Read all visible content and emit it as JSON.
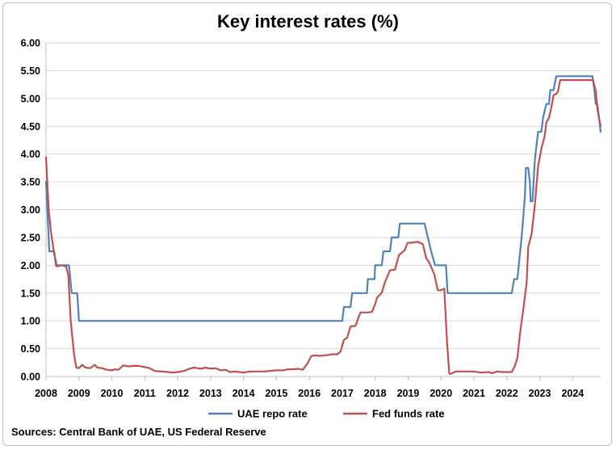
{
  "chart_data": {
    "type": "line",
    "title": "Key interest rates (%)",
    "source": "Sources: Central Bank of UAE, US Federal Reserve",
    "xlim": [
      2008,
      2024.85
    ],
    "ylim": [
      0,
      6
    ],
    "y_ticks": [
      0,
      0.5,
      1,
      1.5,
      2,
      2.5,
      3,
      3.5,
      4,
      4.5,
      5,
      5.5,
      6
    ],
    "y_tick_labels": [
      "0.00",
      "0.50",
      "1.00",
      "1.50",
      "2.00",
      "2.50",
      "3.00",
      "3.50",
      "4.00",
      "4.50",
      "5.00",
      "5.50",
      "6.00"
    ],
    "x_tick_labels": [
      "2008",
      "2009",
      "2010",
      "2011",
      "2012",
      "2013",
      "2014",
      "2015",
      "2016",
      "2017",
      "2018",
      "2019",
      "2020",
      "2021",
      "2022",
      "2023",
      "2024"
    ],
    "grid": "horizontal",
    "legend": "bottom",
    "series": [
      {
        "name": "UAE repo rate",
        "color": "#4f81bd",
        "points": [
          [
            2008.0,
            3.5
          ],
          [
            2008.1,
            2.25
          ],
          [
            2008.25,
            2.25
          ],
          [
            2008.3,
            2.0
          ],
          [
            2008.7,
            2.0
          ],
          [
            2008.78,
            1.5
          ],
          [
            2008.95,
            1.5
          ],
          [
            2009.0,
            1.0
          ],
          [
            2017.0,
            1.0
          ],
          [
            2017.05,
            1.25
          ],
          [
            2017.25,
            1.25
          ],
          [
            2017.3,
            1.5
          ],
          [
            2017.75,
            1.5
          ],
          [
            2017.78,
            1.75
          ],
          [
            2017.98,
            1.75
          ],
          [
            2018.0,
            2.0
          ],
          [
            2018.2,
            2.0
          ],
          [
            2018.25,
            2.25
          ],
          [
            2018.45,
            2.25
          ],
          [
            2018.5,
            2.5
          ],
          [
            2018.7,
            2.5
          ],
          [
            2018.75,
            2.75
          ],
          [
            2019.5,
            2.75
          ],
          [
            2019.7,
            2.25
          ],
          [
            2019.82,
            2.0
          ],
          [
            2020.15,
            2.0
          ],
          [
            2020.2,
            1.5
          ],
          [
            2022.15,
            1.5
          ],
          [
            2022.22,
            1.75
          ],
          [
            2022.32,
            1.75
          ],
          [
            2022.45,
            2.5
          ],
          [
            2022.55,
            3.25
          ],
          [
            2022.58,
            3.75
          ],
          [
            2022.65,
            3.75
          ],
          [
            2022.7,
            3.5
          ],
          [
            2022.72,
            3.15
          ],
          [
            2022.78,
            3.15
          ],
          [
            2022.85,
            3.9
          ],
          [
            2022.95,
            4.4
          ],
          [
            2023.05,
            4.4
          ],
          [
            2023.1,
            4.65
          ],
          [
            2023.2,
            4.9
          ],
          [
            2023.28,
            4.9
          ],
          [
            2023.32,
            5.15
          ],
          [
            2023.42,
            5.15
          ],
          [
            2023.5,
            5.4
          ],
          [
            2024.6,
            5.4
          ],
          [
            2024.66,
            5.15
          ],
          [
            2024.7,
            4.9
          ],
          [
            2024.75,
            4.9
          ],
          [
            2024.8,
            4.65
          ],
          [
            2024.85,
            4.4
          ]
        ]
      },
      {
        "name": "Fed funds rate",
        "color": "#c0504d",
        "points": [
          [
            2008.0,
            3.94
          ],
          [
            2008.08,
            3.0
          ],
          [
            2008.15,
            2.6
          ],
          [
            2008.25,
            2.2
          ],
          [
            2008.33,
            1.98
          ],
          [
            2008.5,
            2.0
          ],
          [
            2008.62,
            1.97
          ],
          [
            2008.68,
            1.8
          ],
          [
            2008.75,
            1.0
          ],
          [
            2008.85,
            0.4
          ],
          [
            2008.92,
            0.16
          ],
          [
            2009.0,
            0.15
          ],
          [
            2009.1,
            0.21
          ],
          [
            2009.2,
            0.16
          ],
          [
            2009.35,
            0.15
          ],
          [
            2009.48,
            0.21
          ],
          [
            2009.55,
            0.16
          ],
          [
            2009.7,
            0.15
          ],
          [
            2009.85,
            0.12
          ],
          [
            2010.0,
            0.11
          ],
          [
            2010.1,
            0.13
          ],
          [
            2010.2,
            0.12
          ],
          [
            2010.35,
            0.2
          ],
          [
            2010.5,
            0.18
          ],
          [
            2010.65,
            0.19
          ],
          [
            2010.8,
            0.19
          ],
          [
            2011.0,
            0.17
          ],
          [
            2011.15,
            0.15
          ],
          [
            2011.3,
            0.1
          ],
          [
            2011.5,
            0.09
          ],
          [
            2011.7,
            0.08
          ],
          [
            2011.85,
            0.07
          ],
          [
            2012.0,
            0.08
          ],
          [
            2012.2,
            0.1
          ],
          [
            2012.35,
            0.14
          ],
          [
            2012.5,
            0.16
          ],
          [
            2012.7,
            0.14
          ],
          [
            2012.85,
            0.16
          ],
          [
            2013.0,
            0.14
          ],
          [
            2013.15,
            0.15
          ],
          [
            2013.3,
            0.11
          ],
          [
            2013.45,
            0.12
          ],
          [
            2013.6,
            0.08
          ],
          [
            2013.75,
            0.09
          ],
          [
            2014.0,
            0.07
          ],
          [
            2014.2,
            0.09
          ],
          [
            2014.4,
            0.09
          ],
          [
            2014.6,
            0.09
          ],
          [
            2014.8,
            0.1
          ],
          [
            2015.0,
            0.11
          ],
          [
            2015.2,
            0.11
          ],
          [
            2015.35,
            0.13
          ],
          [
            2015.5,
            0.13
          ],
          [
            2015.65,
            0.14
          ],
          [
            2015.8,
            0.12
          ],
          [
            2015.95,
            0.24
          ],
          [
            2016.05,
            0.36
          ],
          [
            2016.15,
            0.38
          ],
          [
            2016.3,
            0.37
          ],
          [
            2016.5,
            0.38
          ],
          [
            2016.7,
            0.4
          ],
          [
            2016.85,
            0.4
          ],
          [
            2016.95,
            0.45
          ],
          [
            2017.05,
            0.66
          ],
          [
            2017.15,
            0.7
          ],
          [
            2017.25,
            0.9
          ],
          [
            2017.4,
            0.91
          ],
          [
            2017.55,
            1.15
          ],
          [
            2017.75,
            1.15
          ],
          [
            2017.9,
            1.16
          ],
          [
            2018.0,
            1.3
          ],
          [
            2018.05,
            1.41
          ],
          [
            2018.2,
            1.51
          ],
          [
            2018.3,
            1.7
          ],
          [
            2018.45,
            1.91
          ],
          [
            2018.6,
            1.92
          ],
          [
            2018.72,
            2.18
          ],
          [
            2018.9,
            2.27
          ],
          [
            2018.98,
            2.4
          ],
          [
            2019.15,
            2.41
          ],
          [
            2019.3,
            2.42
          ],
          [
            2019.45,
            2.38
          ],
          [
            2019.55,
            2.13
          ],
          [
            2019.65,
            2.04
          ],
          [
            2019.8,
            1.83
          ],
          [
            2019.9,
            1.55
          ],
          [
            2020.0,
            1.55
          ],
          [
            2020.1,
            1.58
          ],
          [
            2020.18,
            0.65
          ],
          [
            2020.25,
            0.05
          ],
          [
            2020.3,
            0.05
          ],
          [
            2020.45,
            0.09
          ],
          [
            2020.6,
            0.09
          ],
          [
            2020.8,
            0.09
          ],
          [
            2021.0,
            0.09
          ],
          [
            2021.2,
            0.07
          ],
          [
            2021.45,
            0.08
          ],
          [
            2021.55,
            0.06
          ],
          [
            2021.7,
            0.09
          ],
          [
            2021.85,
            0.08
          ],
          [
            2022.0,
            0.08
          ],
          [
            2022.15,
            0.08
          ],
          [
            2022.25,
            0.2
          ],
          [
            2022.32,
            0.33
          ],
          [
            2022.4,
            0.77
          ],
          [
            2022.5,
            1.21
          ],
          [
            2022.6,
            1.68
          ],
          [
            2022.65,
            2.33
          ],
          [
            2022.75,
            2.56
          ],
          [
            2022.85,
            3.08
          ],
          [
            2022.95,
            3.78
          ],
          [
            2023.05,
            4.1
          ],
          [
            2023.15,
            4.33
          ],
          [
            2023.2,
            4.57
          ],
          [
            2023.28,
            4.65
          ],
          [
            2023.35,
            4.83
          ],
          [
            2023.42,
            5.06
          ],
          [
            2023.5,
            5.08
          ],
          [
            2023.55,
            5.12
          ],
          [
            2023.62,
            5.33
          ],
          [
            2024.62,
            5.33
          ],
          [
            2024.7,
            5.13
          ],
          [
            2024.75,
            4.83
          ],
          [
            2024.8,
            4.64
          ],
          [
            2024.85,
            4.5
          ]
        ]
      }
    ]
  }
}
